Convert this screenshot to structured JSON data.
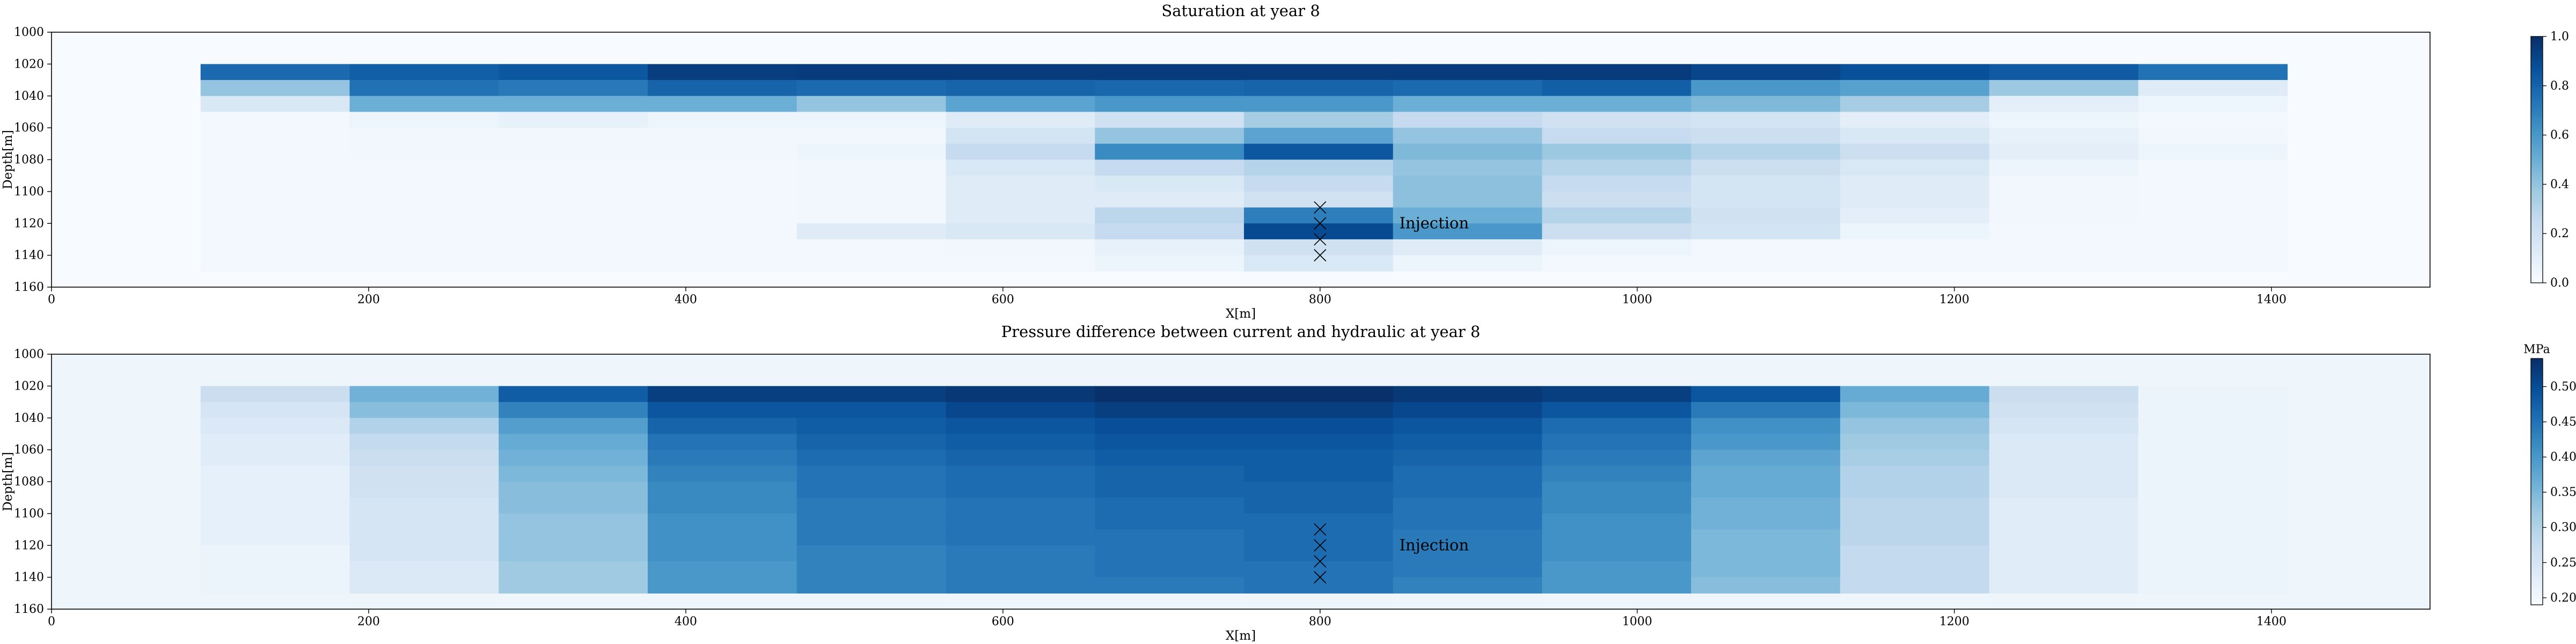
{
  "chart_data": [
    {
      "type": "heatmap",
      "title": "Saturation at year 8",
      "xlabel": "X[m]",
      "ylabel": "Depth[m]",
      "xlim": [
        0,
        1500
      ],
      "ylim": [
        1160,
        1000
      ],
      "x_ticks": [
        0,
        200,
        400,
        600,
        800,
        1000,
        1200,
        1400
      ],
      "y_ticks": [
        1000,
        1020,
        1040,
        1060,
        1080,
        1100,
        1120,
        1140,
        1160
      ],
      "x_edges": [
        94,
        188,
        282,
        376,
        470,
        564,
        658,
        752,
        846,
        940,
        1034,
        1128,
        1222,
        1316,
        1410
      ],
      "y_edges": [
        1020,
        1030,
        1040,
        1050,
        1060,
        1070,
        1080,
        1090,
        1100,
        1110,
        1120,
        1130,
        1140,
        1150
      ],
      "colorscale": "Blues",
      "colorbar": {
        "label": "",
        "min": 0.0,
        "max": 1.0,
        "ticks": [
          0.0,
          0.2,
          0.4,
          0.6,
          0.8,
          1.0
        ],
        "tick_labels": [
          "0.0",
          "0.2",
          "0.4",
          "0.6",
          "0.8",
          "1.0"
        ]
      },
      "values": [
        [
          0.78,
          0.82,
          0.85,
          0.95,
          0.96,
          0.96,
          0.96,
          0.96,
          0.96,
          0.96,
          0.92,
          0.88,
          0.84,
          0.75
        ],
        [
          0.4,
          0.75,
          0.72,
          0.8,
          0.78,
          0.8,
          0.79,
          0.8,
          0.78,
          0.82,
          0.6,
          0.56,
          0.38,
          0.12
        ],
        [
          0.15,
          0.5,
          0.5,
          0.5,
          0.4,
          0.55,
          0.6,
          0.6,
          0.5,
          0.5,
          0.45,
          0.35,
          0.1,
          0.05
        ],
        [
          0.02,
          0.05,
          0.08,
          0.05,
          0.05,
          0.12,
          0.2,
          0.35,
          0.25,
          0.2,
          0.18,
          0.1,
          0.05,
          0.02
        ],
        [
          0.02,
          0.03,
          0.03,
          0.03,
          0.03,
          0.18,
          0.4,
          0.55,
          0.4,
          0.25,
          0.22,
          0.15,
          0.08,
          0.03
        ],
        [
          0.02,
          0.03,
          0.03,
          0.03,
          0.05,
          0.25,
          0.65,
          0.85,
          0.45,
          0.38,
          0.3,
          0.22,
          0.1,
          0.05
        ],
        [
          0.02,
          0.02,
          0.02,
          0.02,
          0.03,
          0.15,
          0.25,
          0.3,
          0.4,
          0.3,
          0.22,
          0.15,
          0.05,
          0.02
        ],
        [
          0.02,
          0.02,
          0.02,
          0.02,
          0.03,
          0.12,
          0.15,
          0.25,
          0.42,
          0.25,
          0.18,
          0.12,
          0.03,
          0.02
        ],
        [
          0.02,
          0.02,
          0.02,
          0.02,
          0.03,
          0.12,
          0.12,
          0.2,
          0.42,
          0.22,
          0.18,
          0.12,
          0.03,
          0.02
        ],
        [
          0.02,
          0.02,
          0.02,
          0.02,
          0.03,
          0.12,
          0.28,
          0.7,
          0.5,
          0.3,
          0.2,
          0.1,
          0.03,
          0.02
        ],
        [
          0.02,
          0.02,
          0.02,
          0.02,
          0.12,
          0.15,
          0.25,
          0.9,
          0.6,
          0.22,
          0.18,
          0.05,
          0.02,
          0.02
        ],
        [
          0.02,
          0.02,
          0.02,
          0.02,
          0.02,
          0.03,
          0.08,
          0.2,
          0.12,
          0.05,
          0.02,
          0.02,
          0.02,
          0.02
        ],
        [
          0.02,
          0.02,
          0.02,
          0.02,
          0.02,
          0.02,
          0.05,
          0.15,
          0.05,
          0.02,
          0.02,
          0.02,
          0.02,
          0.02
        ]
      ],
      "markers": {
        "symbol": "x",
        "points": [
          [
            800,
            1110
          ],
          [
            800,
            1120
          ],
          [
            800,
            1130
          ],
          [
            800,
            1140
          ]
        ]
      },
      "annotation": {
        "text": "Injection",
        "x": 850,
        "y": 1120
      }
    },
    {
      "type": "heatmap",
      "title": "Pressure difference between current and hydraulic at year 8",
      "xlabel": "X[m]",
      "ylabel": "Depth[m]",
      "xlim": [
        0,
        1500
      ],
      "ylim": [
        1160,
        1000
      ],
      "x_ticks": [
        0,
        200,
        400,
        600,
        800,
        1000,
        1200,
        1400
      ],
      "y_ticks": [
        1000,
        1020,
        1040,
        1060,
        1080,
        1100,
        1120,
        1140,
        1160
      ],
      "x_edges": [
        94,
        188,
        282,
        376,
        470,
        564,
        658,
        752,
        846,
        940,
        1034,
        1128,
        1222,
        1316,
        1410
      ],
      "y_edges": [
        1020,
        1030,
        1040,
        1050,
        1060,
        1070,
        1080,
        1090,
        1100,
        1110,
        1120,
        1130,
        1140,
        1150
      ],
      "colorscale": "Blues",
      "colorbar": {
        "label": "MPa",
        "min": 0.19,
        "max": 0.54,
        "ticks": [
          0.2,
          0.25,
          0.3,
          0.35,
          0.4,
          0.45,
          0.5
        ],
        "tick_labels": [
          "0.20",
          "0.25",
          "0.30",
          "0.35",
          "0.40",
          "0.45",
          "0.50"
        ]
      },
      "background_value": 0.205,
      "values": [
        [
          0.27,
          0.36,
          0.48,
          0.52,
          0.52,
          0.53,
          0.54,
          0.54,
          0.53,
          0.52,
          0.49,
          0.37,
          0.27,
          0.21
        ],
        [
          0.25,
          0.34,
          0.43,
          0.49,
          0.49,
          0.51,
          0.52,
          0.52,
          0.51,
          0.49,
          0.44,
          0.35,
          0.26,
          0.21
        ],
        [
          0.24,
          0.3,
          0.39,
          0.47,
          0.48,
          0.49,
          0.5,
          0.5,
          0.49,
          0.46,
          0.41,
          0.33,
          0.25,
          0.21
        ],
        [
          0.23,
          0.28,
          0.37,
          0.45,
          0.47,
          0.48,
          0.49,
          0.49,
          0.48,
          0.45,
          0.4,
          0.32,
          0.24,
          0.21
        ],
        [
          0.23,
          0.27,
          0.36,
          0.44,
          0.46,
          0.47,
          0.48,
          0.48,
          0.47,
          0.44,
          0.38,
          0.31,
          0.24,
          0.21
        ],
        [
          0.22,
          0.26,
          0.35,
          0.43,
          0.45,
          0.46,
          0.47,
          0.48,
          0.46,
          0.43,
          0.37,
          0.3,
          0.24,
          0.21
        ],
        [
          0.22,
          0.26,
          0.34,
          0.42,
          0.45,
          0.46,
          0.47,
          0.47,
          0.46,
          0.42,
          0.37,
          0.3,
          0.24,
          0.21
        ],
        [
          0.22,
          0.25,
          0.34,
          0.42,
          0.44,
          0.45,
          0.46,
          0.47,
          0.45,
          0.42,
          0.36,
          0.29,
          0.23,
          0.21
        ],
        [
          0.22,
          0.25,
          0.33,
          0.41,
          0.44,
          0.45,
          0.46,
          0.46,
          0.45,
          0.41,
          0.36,
          0.29,
          0.23,
          0.21
        ],
        [
          0.22,
          0.25,
          0.33,
          0.41,
          0.44,
          0.45,
          0.45,
          0.46,
          0.44,
          0.41,
          0.35,
          0.29,
          0.23,
          0.21
        ],
        [
          0.21,
          0.25,
          0.33,
          0.41,
          0.43,
          0.44,
          0.45,
          0.46,
          0.44,
          0.41,
          0.35,
          0.28,
          0.23,
          0.21
        ],
        [
          0.21,
          0.24,
          0.32,
          0.4,
          0.43,
          0.44,
          0.45,
          0.45,
          0.44,
          0.4,
          0.35,
          0.28,
          0.23,
          0.21
        ],
        [
          0.21,
          0.24,
          0.32,
          0.4,
          0.43,
          0.44,
          0.44,
          0.45,
          0.43,
          0.4,
          0.34,
          0.28,
          0.23,
          0.21
        ]
      ],
      "markers": {
        "symbol": "x",
        "points": [
          [
            800,
            1110
          ],
          [
            800,
            1120
          ],
          [
            800,
            1130
          ],
          [
            800,
            1140
          ]
        ]
      },
      "annotation": {
        "text": "Injection",
        "x": 850,
        "y": 1120
      }
    }
  ]
}
